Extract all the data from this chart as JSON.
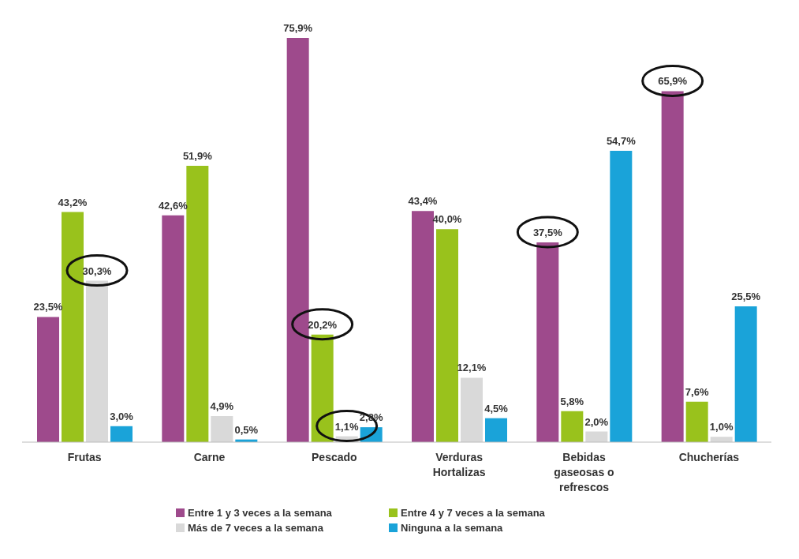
{
  "chart_data": {
    "type": "bar",
    "categories": [
      "Frutas",
      "Carne",
      "Pescado",
      "Verduras Hortalizas",
      "Bebidas gaseosas o refrescos",
      "Chucherías"
    ],
    "series": [
      {
        "name": "Entre 1 y 3 veces a la semana",
        "color": "#9e4a8c",
        "values": [
          23.5,
          42.6,
          75.9,
          43.4,
          37.5,
          65.9
        ],
        "value_labels": [
          "23,5%",
          "42,6%",
          "75,9%",
          "43,4%",
          "37,5%",
          "65,9%"
        ]
      },
      {
        "name": "Entre 4 y 7 veces a la semana",
        "color": "#99c21c",
        "values": [
          43.2,
          51.9,
          20.2,
          40.0,
          5.8,
          7.6
        ],
        "value_labels": [
          "43,2%",
          "51,9%",
          "20,2%",
          "40,0%",
          "5,8%",
          "7,6%"
        ]
      },
      {
        "name": "Más de 7 veces a la semana",
        "color": "#d9d9d9",
        "values": [
          30.3,
          4.9,
          1.1,
          12.1,
          2.0,
          1.0
        ],
        "value_labels": [
          "30,3%",
          "4,9%",
          "1,1%",
          "12,1%",
          "2,0%",
          "1,0%"
        ]
      },
      {
        "name": "Ninguna a la semana",
        "color": "#1aa3d9",
        "values": [
          3.0,
          0.5,
          2.8,
          4.5,
          54.7,
          25.5
        ],
        "value_labels": [
          "3,0%",
          "0,5%",
          "2,8%",
          "4,5%",
          "54,7%",
          "25,5%"
        ]
      }
    ],
    "grid": false,
    "legend": "bottom"
  }
}
